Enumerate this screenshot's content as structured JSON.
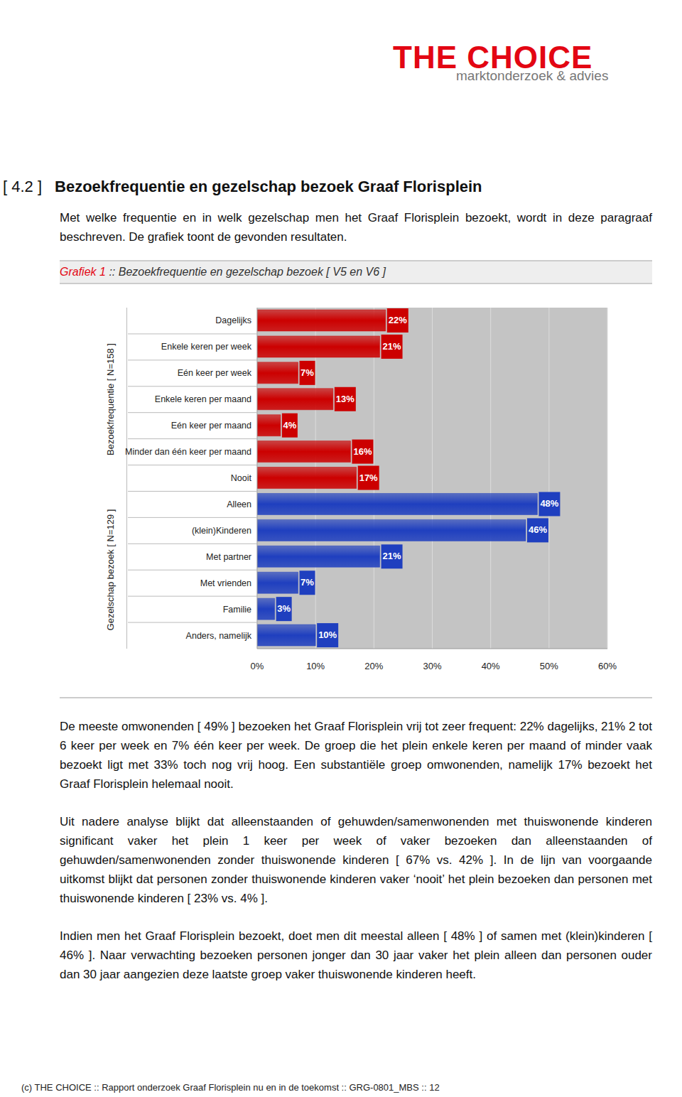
{
  "logo": {
    "name": "THE CHOICE",
    "tagline": "marktonderzoek & advies"
  },
  "section": {
    "number": "[ 4.2 ]",
    "title": "Bezoekfrequentie en gezelschap bezoek Graaf Florisplein"
  },
  "intro": "Met welke frequentie en in welk gezelschap men het Graaf Florisplein bezoekt, wordt in deze paragraaf beschreven. De grafiek toont de gevonden resultaten.",
  "figure": {
    "label": "Grafiek 1",
    "caption": ":: Bezoekfrequentie en gezelschap bezoek [ V5 en V6 ]"
  },
  "chart_data": {
    "type": "bar",
    "orientation": "horizontal",
    "groups": [
      {
        "label": "Bezoekfrequentie [ N=158 ]",
        "color": "#cc0000",
        "categories": [
          "Dagelijks",
          "Enkele keren per week",
          "Eén keer per week",
          "Enkele keren per maand",
          "Eén keer per maand",
          "Minder dan één keer per maand",
          "Nooit"
        ],
        "values": [
          22,
          21,
          7,
          13,
          4,
          16,
          17
        ],
        "value_labels": [
          "22%",
          "21%",
          "7%",
          "13%",
          "4%",
          "16%",
          "17%"
        ]
      },
      {
        "label": "Gezelschap bezoek [ N=129 ]",
        "color": "#1f3fbf",
        "categories": [
          "Alleen",
          "(klein)Kinderen",
          "Met partner",
          "Met vrienden",
          "Familie",
          "Anders, namelijk"
        ],
        "values": [
          48,
          46,
          21,
          7,
          3,
          10
        ],
        "value_labels": [
          "48%",
          "46%",
          "21%",
          "7%",
          "3%",
          "10%"
        ]
      }
    ],
    "xlim": [
      0,
      60
    ],
    "xticks": [
      {
        "value": 0,
        "label": "0%"
      },
      {
        "value": 10,
        "label": "10%"
      },
      {
        "value": 20,
        "label": "20%"
      },
      {
        "value": 30,
        "label": "30%"
      },
      {
        "value": 40,
        "label": "40%"
      },
      {
        "value": 50,
        "label": "50%"
      },
      {
        "value": 60,
        "label": "60%"
      }
    ],
    "grid": true,
    "data_labels": true
  },
  "paragraphs": [
    "De meeste omwonenden [ 49% ] bezoeken het Graaf Florisplein vrij tot zeer frequent: 22% dagelijks, 21% 2 tot 6 keer per week en 7% één keer per week. De groep die het plein enkele keren per maand of minder vaak bezoekt ligt met 33% toch nog vrij hoog. Een substantiële groep omwonenden, namelijk 17% bezoekt het Graaf Florisplein helemaal nooit.",
    "Uit nadere analyse blijkt dat alleenstaanden of gehuwden/samenwonenden met thuiswonende kinderen significant vaker het plein 1 keer per week of vaker bezoeken dan alleenstaanden of gehuwden/samenwonenden zonder thuiswonende kinderen [ 67% vs. 42% ]. In de lijn van voorgaande uitkomst blijkt dat personen zonder thuiswonende kinderen vaker ‘nooit’ het plein bezoeken dan personen met thuiswonende kinderen [ 23% vs. 4% ].",
    "Indien men het Graaf Florisplein bezoekt, doet men dit meestal alleen [ 48% ] of samen met (klein)kinderen [ 46% ]. Naar verwachting bezoeken personen jonger dan 30 jaar vaker het plein alleen dan personen ouder dan 30 jaar aangezien deze laatste groep vaker thuiswonende kinderen heeft."
  ],
  "footer": "(c) THE CHOICE :: Rapport onderzoek Graaf Florisplein nu en in de toekomst :: GRG-0801_MBS :: 12"
}
